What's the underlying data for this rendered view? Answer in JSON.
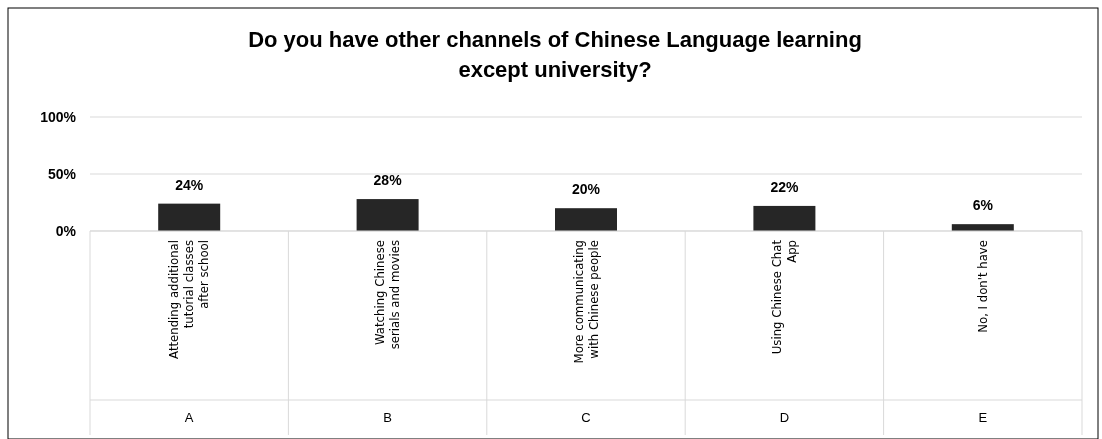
{
  "chart_data": {
    "type": "bar",
    "title": "Do you have other channels of Chinese Language learning except university?",
    "categories": [
      "Attending additional tutorial classes after school",
      "Watching Chinese serials and movies",
      "More communicating with Chinese people",
      "Using Chinese Chat App",
      "No, I don't have"
    ],
    "values": [
      24,
      28,
      20,
      22,
      6
    ],
    "value_labels": [
      "24%",
      "28%",
      "20%",
      "22%",
      "6%"
    ],
    "color": "#262626",
    "ylim": [
      0,
      100
    ],
    "yticks": [
      {
        "value": 0,
        "label": "0%"
      },
      {
        "value": 50,
        "label": "50%"
      },
      {
        "value": 100,
        "label": "100%"
      }
    ],
    "grid": "y",
    "annotations": [
      "A",
      "B",
      "C",
      "D",
      "E"
    ]
  }
}
